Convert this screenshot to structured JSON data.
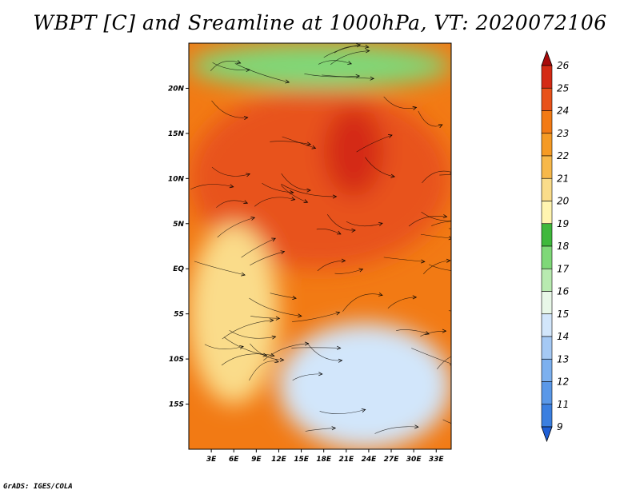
{
  "chart_data": {
    "type": "heatmap",
    "title": "WBPT [C] and Sreamline at 1000hPa, VT: 2020072106",
    "xlabel": "",
    "ylabel": "",
    "x_ticks": [
      "3E",
      "6E",
      "9E",
      "12E",
      "15E",
      "18E",
      "21E",
      "24E",
      "27E",
      "30E",
      "33E"
    ],
    "x_tick_values": [
      3,
      6,
      9,
      12,
      15,
      18,
      21,
      24,
      27,
      30,
      33
    ],
    "y_ticks": [
      "20N",
      "15N",
      "10N",
      "5N",
      "EQ",
      "5S",
      "10S",
      "15S"
    ],
    "y_tick_values": [
      20,
      15,
      10,
      5,
      0,
      -5,
      -10,
      -15
    ],
    "xlim": [
      0,
      35
    ],
    "ylim": [
      -20,
      25
    ],
    "colorbar": {
      "levels": [
        "7",
        "9",
        "11",
        "12",
        "13",
        "14",
        "15",
        "16",
        "17",
        "18",
        "19",
        "20",
        "21",
        "22",
        "23",
        "24",
        "25",
        "26"
      ],
      "colors": [
        "#1e5fd6",
        "#3b7fe0",
        "#5a98e8",
        "#7cb0ef",
        "#a5c9f4",
        "#d2e6fb",
        "#e8f7e8",
        "#b8eab0",
        "#7fd878",
        "#3fb83c",
        "#fff4b0",
        "#fadc8a",
        "#f7b84a",
        "#f59a24",
        "#f27a14",
        "#e8521a",
        "#d42a14",
        "#a80a0a"
      ]
    },
    "regions": [
      {
        "level": "25",
        "lon": [
          18,
          26
        ],
        "lat": [
          8,
          18
        ]
      },
      {
        "level": "24",
        "lon": [
          0,
          35
        ],
        "lat": [
          0,
          20
        ]
      },
      {
        "level": "20",
        "lon": [
          0,
          12
        ],
        "lat": [
          -15,
          5
        ]
      },
      {
        "level": "17",
        "lon": [
          0,
          35
        ],
        "lat": [
          20,
          25
        ]
      },
      {
        "level": "14",
        "lon": [
          12,
          35
        ],
        "lat": [
          -20,
          -6
        ]
      }
    ]
  },
  "footer": "GrADS: IGES/COLA"
}
